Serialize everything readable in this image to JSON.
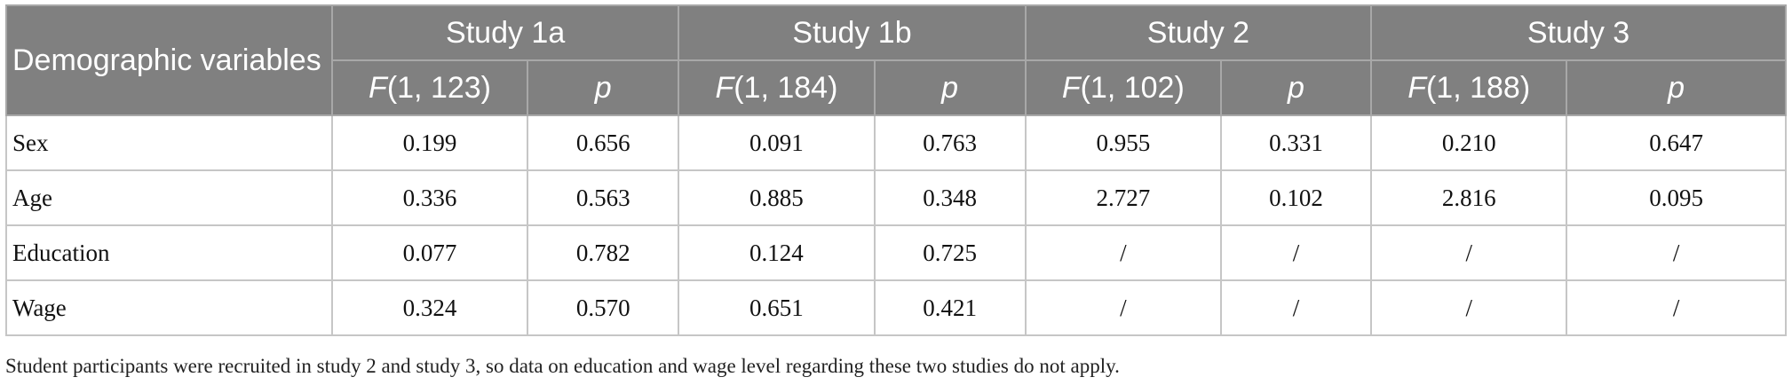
{
  "table": {
    "header": {
      "first_col": "Demographic variables",
      "studies": [
        "Study 1a",
        "Study 1b",
        "Study 2",
        "Study 3"
      ],
      "sub": [
        {
          "f_italic": "F",
          "f_rest": "(1, 123)",
          "p": "p"
        },
        {
          "f_italic": "F",
          "f_rest": "(1, 184)",
          "p": "p"
        },
        {
          "f_italic": "F",
          "f_rest": "(1, 102)",
          "p": "p"
        },
        {
          "f_italic": "F",
          "f_rest": "(1, 188)",
          "p": "p"
        }
      ]
    },
    "rows": [
      {
        "label": "Sex",
        "cells": [
          "0.199",
          "0.656",
          "0.091",
          "0.763",
          "0.955",
          "0.331",
          "0.210",
          "0.647"
        ]
      },
      {
        "label": "Age",
        "cells": [
          "0.336",
          "0.563",
          "0.885",
          "0.348",
          "2.727",
          "0.102",
          "2.816",
          "0.095"
        ]
      },
      {
        "label": "Education",
        "cells": [
          "0.077",
          "0.782",
          "0.124",
          "0.725",
          "/",
          "/",
          "/",
          "/"
        ]
      },
      {
        "label": "Wage",
        "cells": [
          "0.324",
          "0.570",
          "0.651",
          "0.421",
          "/",
          "/",
          "/",
          "/"
        ]
      }
    ]
  },
  "footnote": "Student participants were recruited in study 2 and study 3, so data on education and wage level regarding these two studies do not apply."
}
